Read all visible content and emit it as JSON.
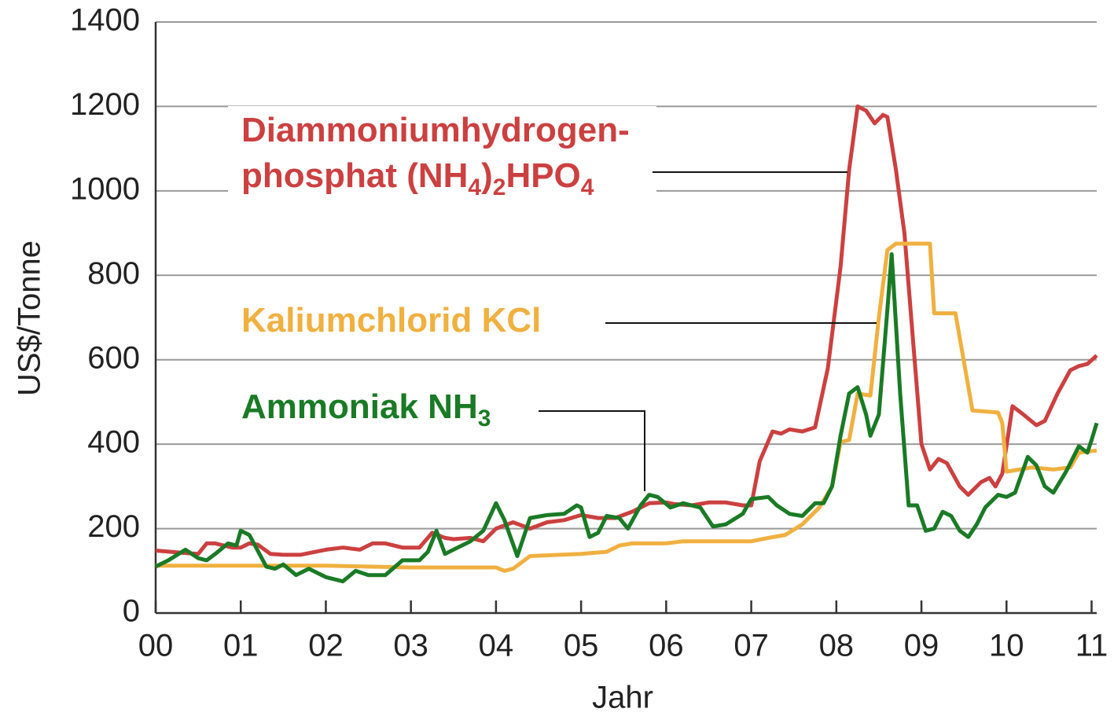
{
  "chart_data": {
    "type": "line",
    "x_label": "Jahr",
    "y_label": "US$/Tonne",
    "xlim": [
      0,
      11.06
    ],
    "ylim": [
      0,
      1400
    ],
    "xticks": [
      {
        "value": 0,
        "label": "00"
      },
      {
        "value": 1,
        "label": "01"
      },
      {
        "value": 2,
        "label": "02"
      },
      {
        "value": 3,
        "label": "03"
      },
      {
        "value": 4,
        "label": "04"
      },
      {
        "value": 5,
        "label": "05"
      },
      {
        "value": 6,
        "label": "06"
      },
      {
        "value": 7,
        "label": "07"
      },
      {
        "value": 8,
        "label": "08"
      },
      {
        "value": 9,
        "label": "09"
      },
      10,
      11
    ],
    "yticks": [
      0,
      200,
      400,
      600,
      800,
      1000,
      1200,
      1400
    ],
    "grid": true,
    "series": [
      {
        "name": [
          [
            "Diammoniumhydrogen-"
          ],
          [
            "phosphat (NH",
            "4",
            ")",
            "2",
            "HPO",
            "4"
          ]
        ],
        "color": "#cc4040",
        "x": [
          0,
          0.3,
          0.5,
          0.6,
          0.7,
          0.9,
          1.0,
          1.1,
          1.2,
          1.35,
          1.5,
          1.7,
          2.0,
          2.2,
          2.4,
          2.55,
          2.7,
          2.9,
          3.1,
          3.25,
          3.4,
          3.5,
          3.7,
          3.85,
          4.0,
          4.2,
          4.4,
          4.6,
          4.8,
          5.0,
          5.2,
          5.4,
          5.6,
          5.8,
          6.0,
          6.1,
          6.3,
          6.5,
          6.7,
          6.9,
          7.0,
          7.1,
          7.25,
          7.35,
          7.45,
          7.6,
          7.75,
          7.9,
          8.05,
          8.15,
          8.25,
          8.35,
          8.45,
          8.55,
          8.6,
          8.7,
          8.8,
          8.9,
          9.0,
          9.1,
          9.2,
          9.3,
          9.45,
          9.55,
          9.7,
          9.8,
          9.87,
          9.95,
          10.07,
          10.2,
          10.35,
          10.45,
          10.6,
          10.75,
          10.85,
          10.95,
          11.06
        ],
        "values": [
          148,
          143,
          140,
          165,
          165,
          155,
          155,
          165,
          162,
          140,
          138,
          138,
          150,
          155,
          150,
          165,
          165,
          155,
          155,
          190,
          178,
          175,
          178,
          170,
          200,
          215,
          200,
          215,
          220,
          232,
          225,
          225,
          240,
          260,
          262,
          258,
          255,
          262,
          262,
          255,
          255,
          360,
          430,
          425,
          435,
          430,
          440,
          580,
          820,
          1050,
          1200,
          1190,
          1160,
          1180,
          1175,
          1050,
          900,
          650,
          400,
          340,
          365,
          355,
          300,
          280,
          310,
          320,
          300,
          330,
          490,
          470,
          445,
          455,
          520,
          575,
          585,
          590,
          610
        ]
      },
      {
        "name": [
          [
            "Kaliumchlorid KCl"
          ]
        ],
        "color": "#f0b040",
        "x": [
          0,
          2.0,
          3.0,
          4.0,
          4.1,
          4.2,
          4.4,
          5.0,
          5.3,
          5.45,
          5.6,
          6.0,
          6.2,
          7.0,
          7.2,
          7.4,
          7.6,
          7.8,
          7.95,
          8.05,
          8.15,
          8.25,
          8.4,
          8.5,
          8.6,
          8.7,
          9.1,
          9.15,
          9.4,
          9.6,
          9.9,
          9.95,
          10.0,
          10.3,
          10.55,
          10.75,
          10.85,
          11.06
        ],
        "values": [
          112,
          112,
          108,
          108,
          100,
          105,
          135,
          140,
          145,
          160,
          165,
          165,
          170,
          170,
          178,
          185,
          210,
          250,
          300,
          405,
          410,
          520,
          515,
          700,
          860,
          875,
          875,
          710,
          710,
          480,
          475,
          450,
          335,
          345,
          340,
          345,
          380,
          385
        ]
      },
      {
        "name": [
          [
            "Ammoniak NH",
            "3"
          ]
        ],
        "color": "#1a7a25",
        "x": [
          0,
          0.15,
          0.35,
          0.5,
          0.6,
          0.7,
          0.85,
          0.95,
          1.0,
          1.1,
          1.3,
          1.4,
          1.5,
          1.65,
          1.8,
          2.0,
          2.2,
          2.35,
          2.5,
          2.7,
          2.9,
          3.1,
          3.2,
          3.3,
          3.4,
          3.55,
          3.7,
          3.85,
          4.0,
          4.1,
          4.25,
          4.4,
          4.6,
          4.8,
          4.95,
          5.0,
          5.1,
          5.2,
          5.3,
          5.45,
          5.55,
          5.7,
          5.8,
          5.9,
          6.05,
          6.2,
          6.4,
          6.55,
          6.7,
          6.9,
          7.0,
          7.2,
          7.3,
          7.45,
          7.6,
          7.75,
          7.85,
          7.95,
          8.05,
          8.15,
          8.25,
          8.35,
          8.4,
          8.5,
          8.6,
          8.65,
          8.75,
          8.85,
          8.95,
          9.05,
          9.15,
          9.25,
          9.35,
          9.45,
          9.55,
          9.65,
          9.75,
          9.9,
          10.0,
          10.1,
          10.25,
          10.35,
          10.45,
          10.55,
          10.7,
          10.85,
          10.95,
          11.0,
          11.06
        ],
        "values": [
          110,
          125,
          150,
          130,
          125,
          140,
          165,
          160,
          195,
          185,
          110,
          105,
          115,
          90,
          105,
          85,
          75,
          100,
          90,
          90,
          125,
          125,
          145,
          195,
          140,
          155,
          170,
          195,
          260,
          220,
          135,
          225,
          232,
          235,
          255,
          250,
          180,
          190,
          230,
          225,
          200,
          255,
          280,
          275,
          250,
          260,
          250,
          205,
          210,
          235,
          270,
          275,
          255,
          235,
          230,
          260,
          260,
          300,
          420,
          520,
          535,
          470,
          420,
          470,
          720,
          850,
          520,
          255,
          255,
          195,
          200,
          240,
          230,
          195,
          180,
          210,
          250,
          280,
          275,
          285,
          370,
          350,
          300,
          285,
          335,
          395,
          380,
          410,
          450
        ]
      }
    ]
  }
}
